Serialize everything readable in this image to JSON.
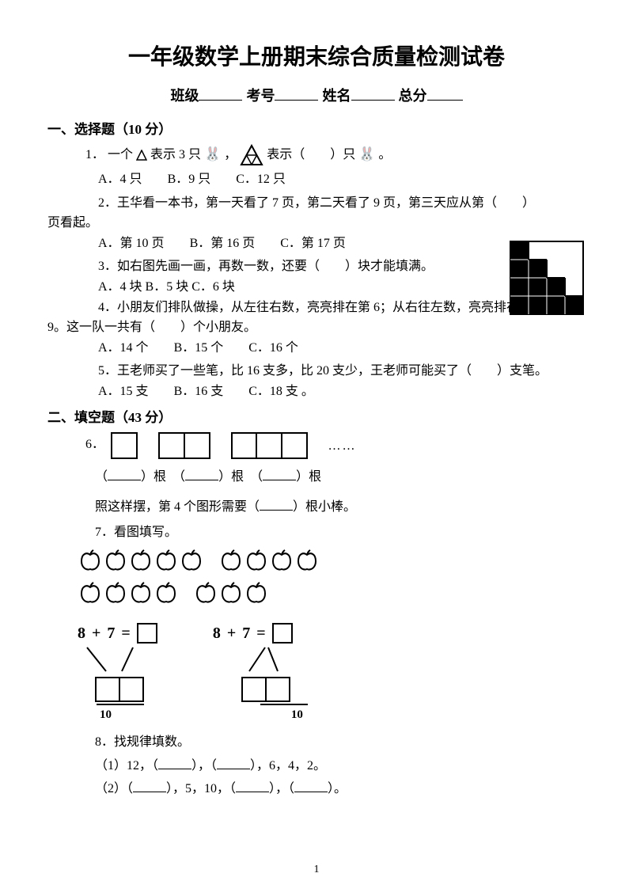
{
  "title": "一年级数学上册期末综合质量检测试卷",
  "info": {
    "class_label": "班级",
    "id_label": "考号",
    "name_label": "姓名",
    "score_label": "总分"
  },
  "section1": {
    "header": "一、选择题（10 分）",
    "q1": {
      "num": "1．",
      "text1": "一个",
      "text2": "表示 3 只",
      "text3": "，",
      "text4": " 表示（　　）只",
      "text5": "。",
      "optA": "A．4 只",
      "optB": "B．9 只",
      "optC": "C．12 只"
    },
    "q2": {
      "text": "2．王华看一本书，第一天看了 7 页，第二天看了 9 页，第三天应从第（　　）",
      "text2": "页看起。",
      "optA": "A．第 10 页",
      "optB": "B．第 16 页",
      "optC": "C．第 17 页"
    },
    "q3": {
      "text": "3．如右图先画一画，再数一数，还要（　　）块才能填满。",
      "opts": "A．4 块 B．5 块 C．6 块"
    },
    "q4": {
      "text": "4．小朋友们排队做操，从左往右数，亮亮排在第 6；从右往左数，亮亮排在第",
      "text2": "9。这一队一共有（　　）个小朋友。",
      "optA": "A．14 个",
      "optB": "B．15 个",
      "optC": "C．16 个"
    },
    "q5": {
      "text": "5．王老师买了一些笔，比 16 支多，比 20 支少，王老师可能买了（　　）支笔。",
      "optA": "A．15 支",
      "optB": "B．16 支",
      "optC": "C．18 支 。"
    }
  },
  "section2": {
    "header": "二、填空题（43 分）",
    "q6": {
      "num": "6．",
      "label": "根",
      "text2": "照这样摆，第 4 个图形需要（",
      "text3": "）根小棒。",
      "ellipsis": "……"
    },
    "q7": {
      "text": "7．看图填写。",
      "expr_l": "8",
      "plus": "+",
      "expr_r": "7",
      "eq": "=",
      "ten": "10"
    },
    "q8": {
      "text": "8．找规律填数。",
      "line1a": "（1）12，（",
      "line1b": "），（",
      "line1c": "），6，4，2。",
      "line2a": "（2）（",
      "line2b": "），5，10，（",
      "line2c": "），（",
      "line2d": "）。"
    }
  },
  "page_number": "1",
  "apple_counts": {
    "row1_g1": 5,
    "row1_g2": 4,
    "row2_g1": 4,
    "row2_g2": 3
  }
}
